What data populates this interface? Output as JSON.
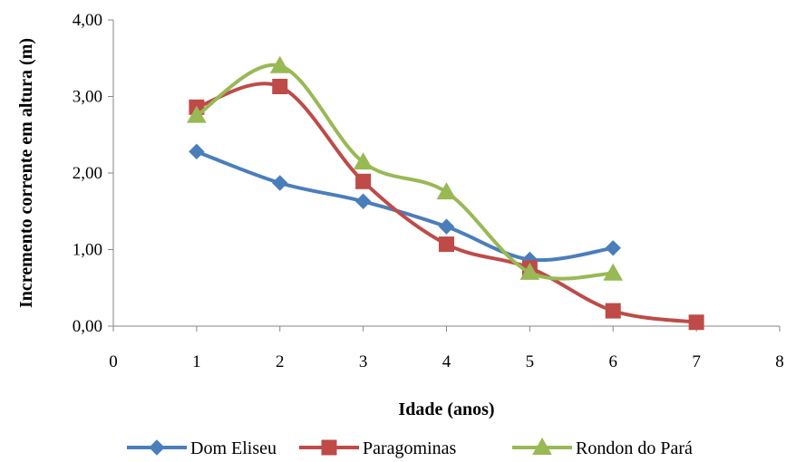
{
  "chart_data": {
    "type": "line",
    "title": "",
    "xlabel": "Idade (anos)",
    "ylabel": "Incremento corrente em altura (m)",
    "xlim": [
      0,
      8
    ],
    "ylim": [
      0,
      4
    ],
    "x_ticks": [
      "0",
      "1",
      "2",
      "3",
      "4",
      "5",
      "6",
      "7",
      "8"
    ],
    "y_ticks": [
      "0,00",
      "1,00",
      "2,00",
      "3,00",
      "4,00"
    ],
    "grid": false,
    "legend_position": "bottom",
    "smooth": true,
    "series": [
      {
        "name": "Dom Eliseu",
        "color": "#4a7ebb",
        "marker": "diamond",
        "x": [
          1,
          2,
          3,
          4,
          5,
          6
        ],
        "y": [
          2.28,
          1.87,
          1.63,
          1.3,
          0.87,
          1.02
        ]
      },
      {
        "name": "Paragominas",
        "color": "#be4b48",
        "marker": "square",
        "x": [
          1,
          2,
          3,
          4,
          5,
          6,
          7
        ],
        "y": [
          2.86,
          3.13,
          1.89,
          1.07,
          0.76,
          0.2,
          0.05
        ]
      },
      {
        "name": "Rondon do Pará",
        "color": "#98b954",
        "marker": "triangle",
        "x": [
          1,
          2,
          3,
          4,
          5,
          6
        ],
        "y": [
          2.75,
          3.4,
          2.14,
          1.75,
          0.7,
          0.69
        ]
      }
    ]
  }
}
